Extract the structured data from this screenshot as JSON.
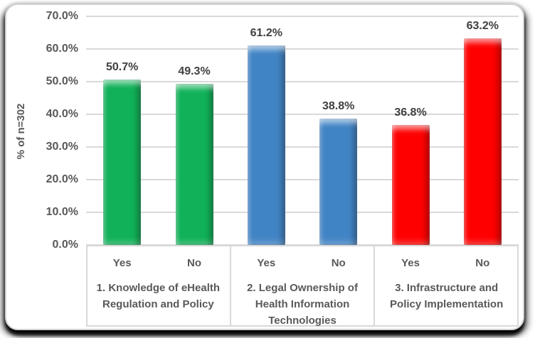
{
  "chart_data": {
    "type": "bar",
    "title": "",
    "xlabel": "",
    "ylabel": "% of n=302",
    "ylim": [
      0,
      70
    ],
    "ytick_step": 10,
    "ytick_labels": [
      "0.0%",
      "10.0%",
      "20.0%",
      "30.0%",
      "40.0%",
      "50.0%",
      "60.0%",
      "70.0%"
    ],
    "grid": true,
    "legend_position": "none",
    "groups": [
      {
        "label": "1. Knowledge of eHealth Regulation and Policy",
        "label_lines": [
          "1. Knowledge of eHealth",
          "Regulation and Policy"
        ],
        "color": "#10B158",
        "bars": [
          {
            "category": "Yes",
            "value": 50.7,
            "data_label": "50.7%"
          },
          {
            "category": "No",
            "value": 49.3,
            "data_label": "49.3%"
          }
        ]
      },
      {
        "label": "2. Legal Ownership of Health Information Technologies",
        "label_lines": [
          "2. Legal Ownership of",
          "Health Information",
          "Technologies"
        ],
        "color": "#4184C5",
        "bars": [
          {
            "category": "Yes",
            "value": 61.2,
            "data_label": "61.2%"
          },
          {
            "category": "No",
            "value": 38.8,
            "data_label": "38.8%"
          }
        ]
      },
      {
        "label": "3. Infrastructure and Policy Implementation",
        "label_lines": [
          "3. Infrastructure and",
          "Policy Implementation"
        ],
        "color": "#FE0000",
        "bars": [
          {
            "category": "Yes",
            "value": 36.8,
            "data_label": "36.8%"
          },
          {
            "category": "No",
            "value": 63.2,
            "data_label": "63.2%"
          }
        ]
      }
    ],
    "styles": {
      "gridline_color": "#D9D9D9",
      "axis_text_color": "#595959",
      "data_label_color": "#404040",
      "frame_border_color": "#D4D4D4"
    }
  }
}
